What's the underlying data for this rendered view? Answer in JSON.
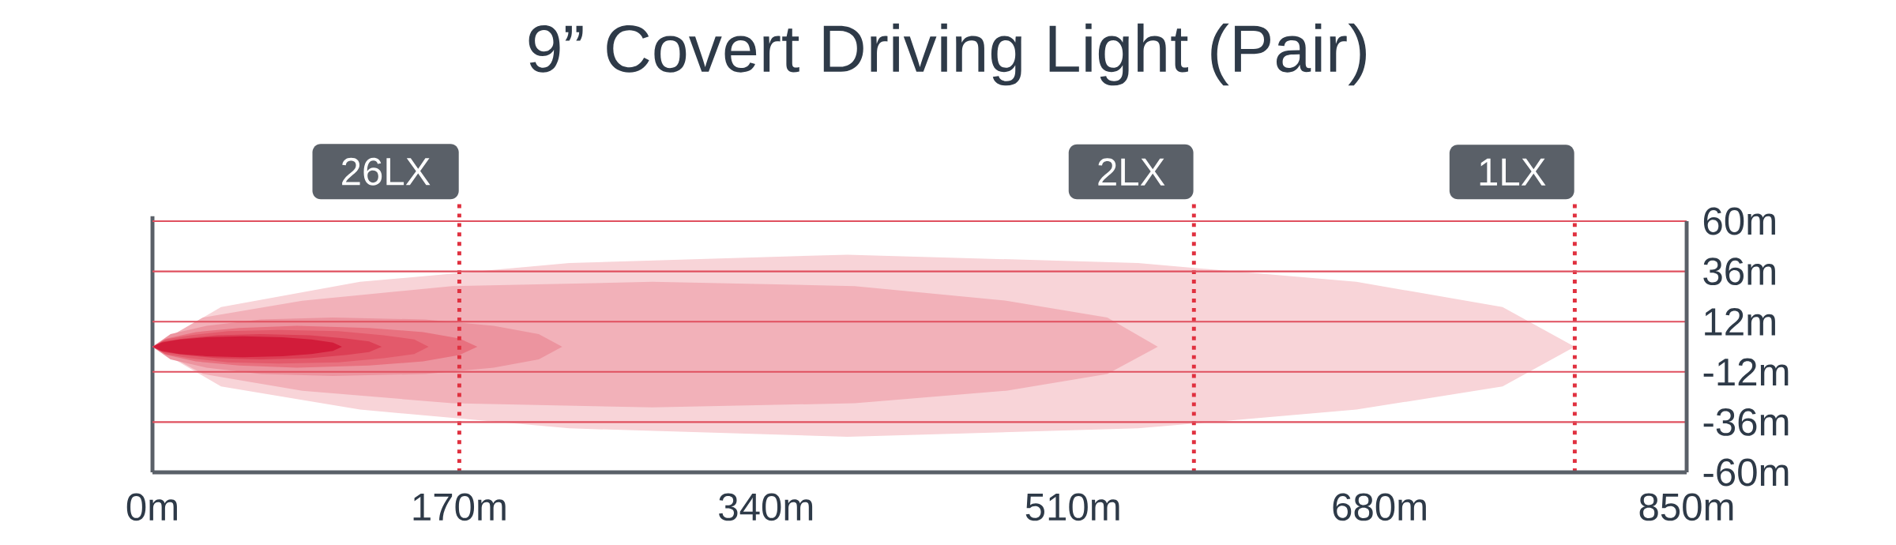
{
  "chart_data": {
    "type": "area",
    "title": "9” Covert Driving Light (Pair)",
    "xlim": [
      0,
      850
    ],
    "ylim": [
      -60,
      60
    ],
    "xticks": [
      {
        "value": 0,
        "label": "0m"
      },
      {
        "value": 170,
        "label": "170m"
      },
      {
        "value": 340,
        "label": "340m"
      },
      {
        "value": 510,
        "label": "510m"
      },
      {
        "value": 680,
        "label": "680m"
      },
      {
        "value": 850,
        "label": "850m"
      }
    ],
    "yticks": [
      {
        "value": 60,
        "label": "60m"
      },
      {
        "value": 36,
        "label": "36m"
      },
      {
        "value": 12,
        "label": "12m"
      },
      {
        "value": -12,
        "label": "-12m"
      },
      {
        "value": -36,
        "label": "-36m"
      },
      {
        "value": -60,
        "label": "-60m"
      }
    ],
    "grid": "y",
    "ref_lines": [
      {
        "axis": "x",
        "value": 170,
        "label": "26LX",
        "color": "#e0303f",
        "line_style": "dotted"
      },
      {
        "axis": "x",
        "value": 577,
        "label": "2LX",
        "color": "#e0303f",
        "line_style": "dotted"
      },
      {
        "axis": "x",
        "value": 788,
        "label": "1LX",
        "color": "#e0303f",
        "line_style": "dotted"
      }
    ],
    "series": [
      {
        "color": "#f8d4d8",
        "x": [
          0,
          38,
          115,
          231,
          385,
          546,
          667,
          748,
          788,
          748,
          667,
          546,
          385,
          231,
          115,
          38
        ],
        "values": [
          0,
          19,
          31,
          40,
          44,
          40,
          31,
          19,
          0,
          -19,
          -30,
          -39,
          -43,
          -39,
          -30,
          -19
        ]
      },
      {
        "color": "#f2b1b9",
        "x": [
          0,
          28,
          83,
          166,
          277,
          389,
          473,
          529,
          557,
          529,
          473,
          389,
          277,
          166,
          83,
          28
        ],
        "values": [
          0,
          14,
          22,
          29,
          31,
          29,
          22,
          14,
          0,
          -13,
          -21,
          -27,
          -29,
          -27,
          -21,
          -13
        ]
      },
      {
        "color": "#ec949f",
        "x": [
          0,
          10,
          30,
          60,
          100,
          151,
          189,
          214,
          227,
          214,
          189,
          151,
          100,
          60,
          30,
          10
        ],
        "values": [
          0,
          6,
          10,
          13,
          14,
          13,
          10,
          6,
          0,
          -6,
          -10,
          -13,
          -14,
          -13,
          -10,
          -6
        ]
      },
      {
        "color": "#e8717f",
        "x": [
          0,
          8,
          24,
          48,
          80,
          120,
          150,
          170,
          180,
          170,
          150,
          120,
          80,
          48,
          24,
          8
        ],
        "values": [
          0,
          4,
          7,
          9,
          10,
          9,
          7,
          4,
          0,
          -4,
          -7,
          -9,
          -10,
          -9,
          -7,
          -4
        ]
      },
      {
        "color": "#e35a6b",
        "x": [
          0,
          7,
          21,
          42,
          70,
          103,
          128,
          145,
          153,
          145,
          128,
          103,
          70,
          42,
          21,
          7
        ],
        "values": [
          0,
          3.5,
          5.5,
          7.5,
          8,
          7.5,
          5.5,
          3.5,
          0,
          -3.5,
          -5.5,
          -7.5,
          -8,
          -7.5,
          -5.5,
          -3.5
        ]
      },
      {
        "color": "#dc3f55",
        "x": [
          0,
          6,
          18,
          36,
          60,
          87,
          107,
          120,
          127,
          120,
          107,
          87,
          60,
          36,
          18,
          6
        ],
        "values": [
          0,
          2.5,
          4,
          5.5,
          6,
          5.5,
          4,
          2.5,
          0,
          -2.5,
          -4,
          -5.5,
          -6,
          -5.5,
          -4,
          -2.5
        ]
      },
      {
        "color": "#d21c3a",
        "x": [
          0,
          5,
          15,
          30,
          50,
          72,
          88,
          100,
          105,
          100,
          88,
          72,
          50,
          30,
          15,
          5
        ],
        "values": [
          0,
          2,
          3.5,
          4.5,
          5,
          4.5,
          3.5,
          2,
          0,
          -2,
          -3.5,
          -4.5,
          -5,
          -4.5,
          -3.5,
          -2
        ]
      }
    ]
  }
}
